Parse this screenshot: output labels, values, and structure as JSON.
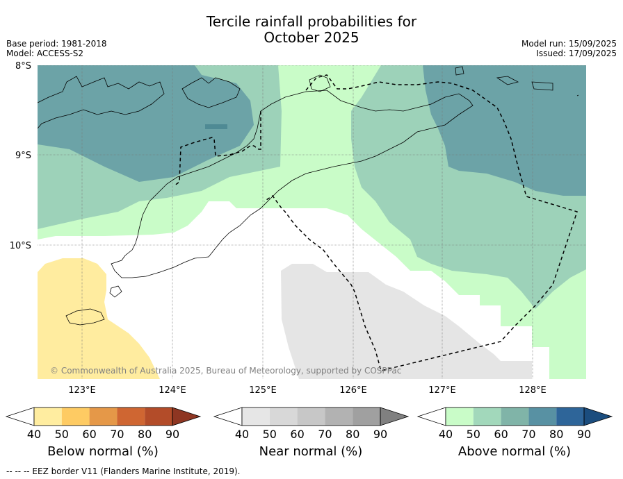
{
  "title": {
    "line1": "Tercile rainfall probabilities for",
    "line2": "October 2025"
  },
  "meta_left": {
    "base_period": "Base period: 1981-2018",
    "model": "Model: ACCESS-S2"
  },
  "meta_right": {
    "model_run": "Model run: 15/09/2025",
    "issued": "Issued: 17/09/2025"
  },
  "map": {
    "lat_labels": [
      "8°S",
      "9°S",
      "10°S"
    ],
    "lon_labels": [
      "123°E",
      "124°E",
      "125°E",
      "126°E",
      "127°E",
      "128°E"
    ],
    "copyright": "© Commonwealth of Australia 2025, Bureau of Meteorology, supported by COSPPac",
    "colors": {
      "above_40": "#c9fcc8",
      "above_50": "#9dd2b9",
      "above_60": "#6ca3a7",
      "near_40": "#e5e5e5",
      "below_40": "#ffec9f"
    }
  },
  "colorbars": [
    {
      "label": "Below normal (%)",
      "ticks": [
        "40",
        "50",
        "60",
        "70",
        "80",
        "90"
      ],
      "colors": [
        "#ffffff",
        "#ffeda0",
        "#fecb63",
        "#e59848",
        "#cf6632",
        "#b34c29",
        "#8e3622"
      ]
    },
    {
      "label": "Near normal (%)",
      "ticks": [
        "40",
        "50",
        "60",
        "70",
        "80",
        "90"
      ],
      "colors": [
        "#ffffff",
        "#e6e6e6",
        "#d8d8d8",
        "#c7c7c7",
        "#b2b2b2",
        "#a0a0a0",
        "#808080"
      ]
    },
    {
      "label": "Above normal (%)",
      "ticks": [
        "40",
        "50",
        "60",
        "70",
        "80",
        "90"
      ],
      "colors": [
        "#ffffff",
        "#c9fcc8",
        "#a2d8bb",
        "#80b4a8",
        "#5891a3",
        "#2e6599",
        "#1b4d7e"
      ]
    }
  ],
  "footnote": "--  --  -- EEZ border V11 (Flanders Marine Institute, 2019)."
}
